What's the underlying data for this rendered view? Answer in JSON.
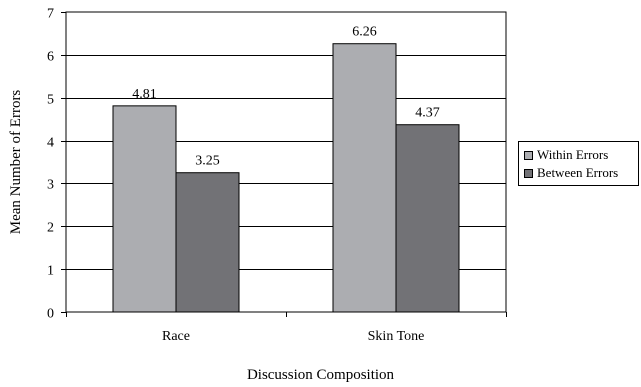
{
  "chart_data": {
    "type": "bar",
    "title": "",
    "xlabel": "Discussion Composition",
    "ylabel": "Mean Number of Errors",
    "categories": [
      "Race",
      "Skin Tone"
    ],
    "series": [
      {
        "name": "Within Errors",
        "values": [
          4.81,
          6.26
        ],
        "color": "#acadb1"
      },
      {
        "name": "Between Errors",
        "values": [
          3.25,
          4.37
        ],
        "color": "#727276"
      }
    ],
    "data_labels": [
      [
        "4.81",
        "6.26"
      ],
      [
        "3.25",
        "4.37"
      ]
    ],
    "ylim": [
      0,
      7
    ],
    "yticks": [
      "0",
      "1",
      "2",
      "3",
      "4",
      "5",
      "6",
      "7"
    ],
    "grid": true,
    "legend_position": "right"
  }
}
